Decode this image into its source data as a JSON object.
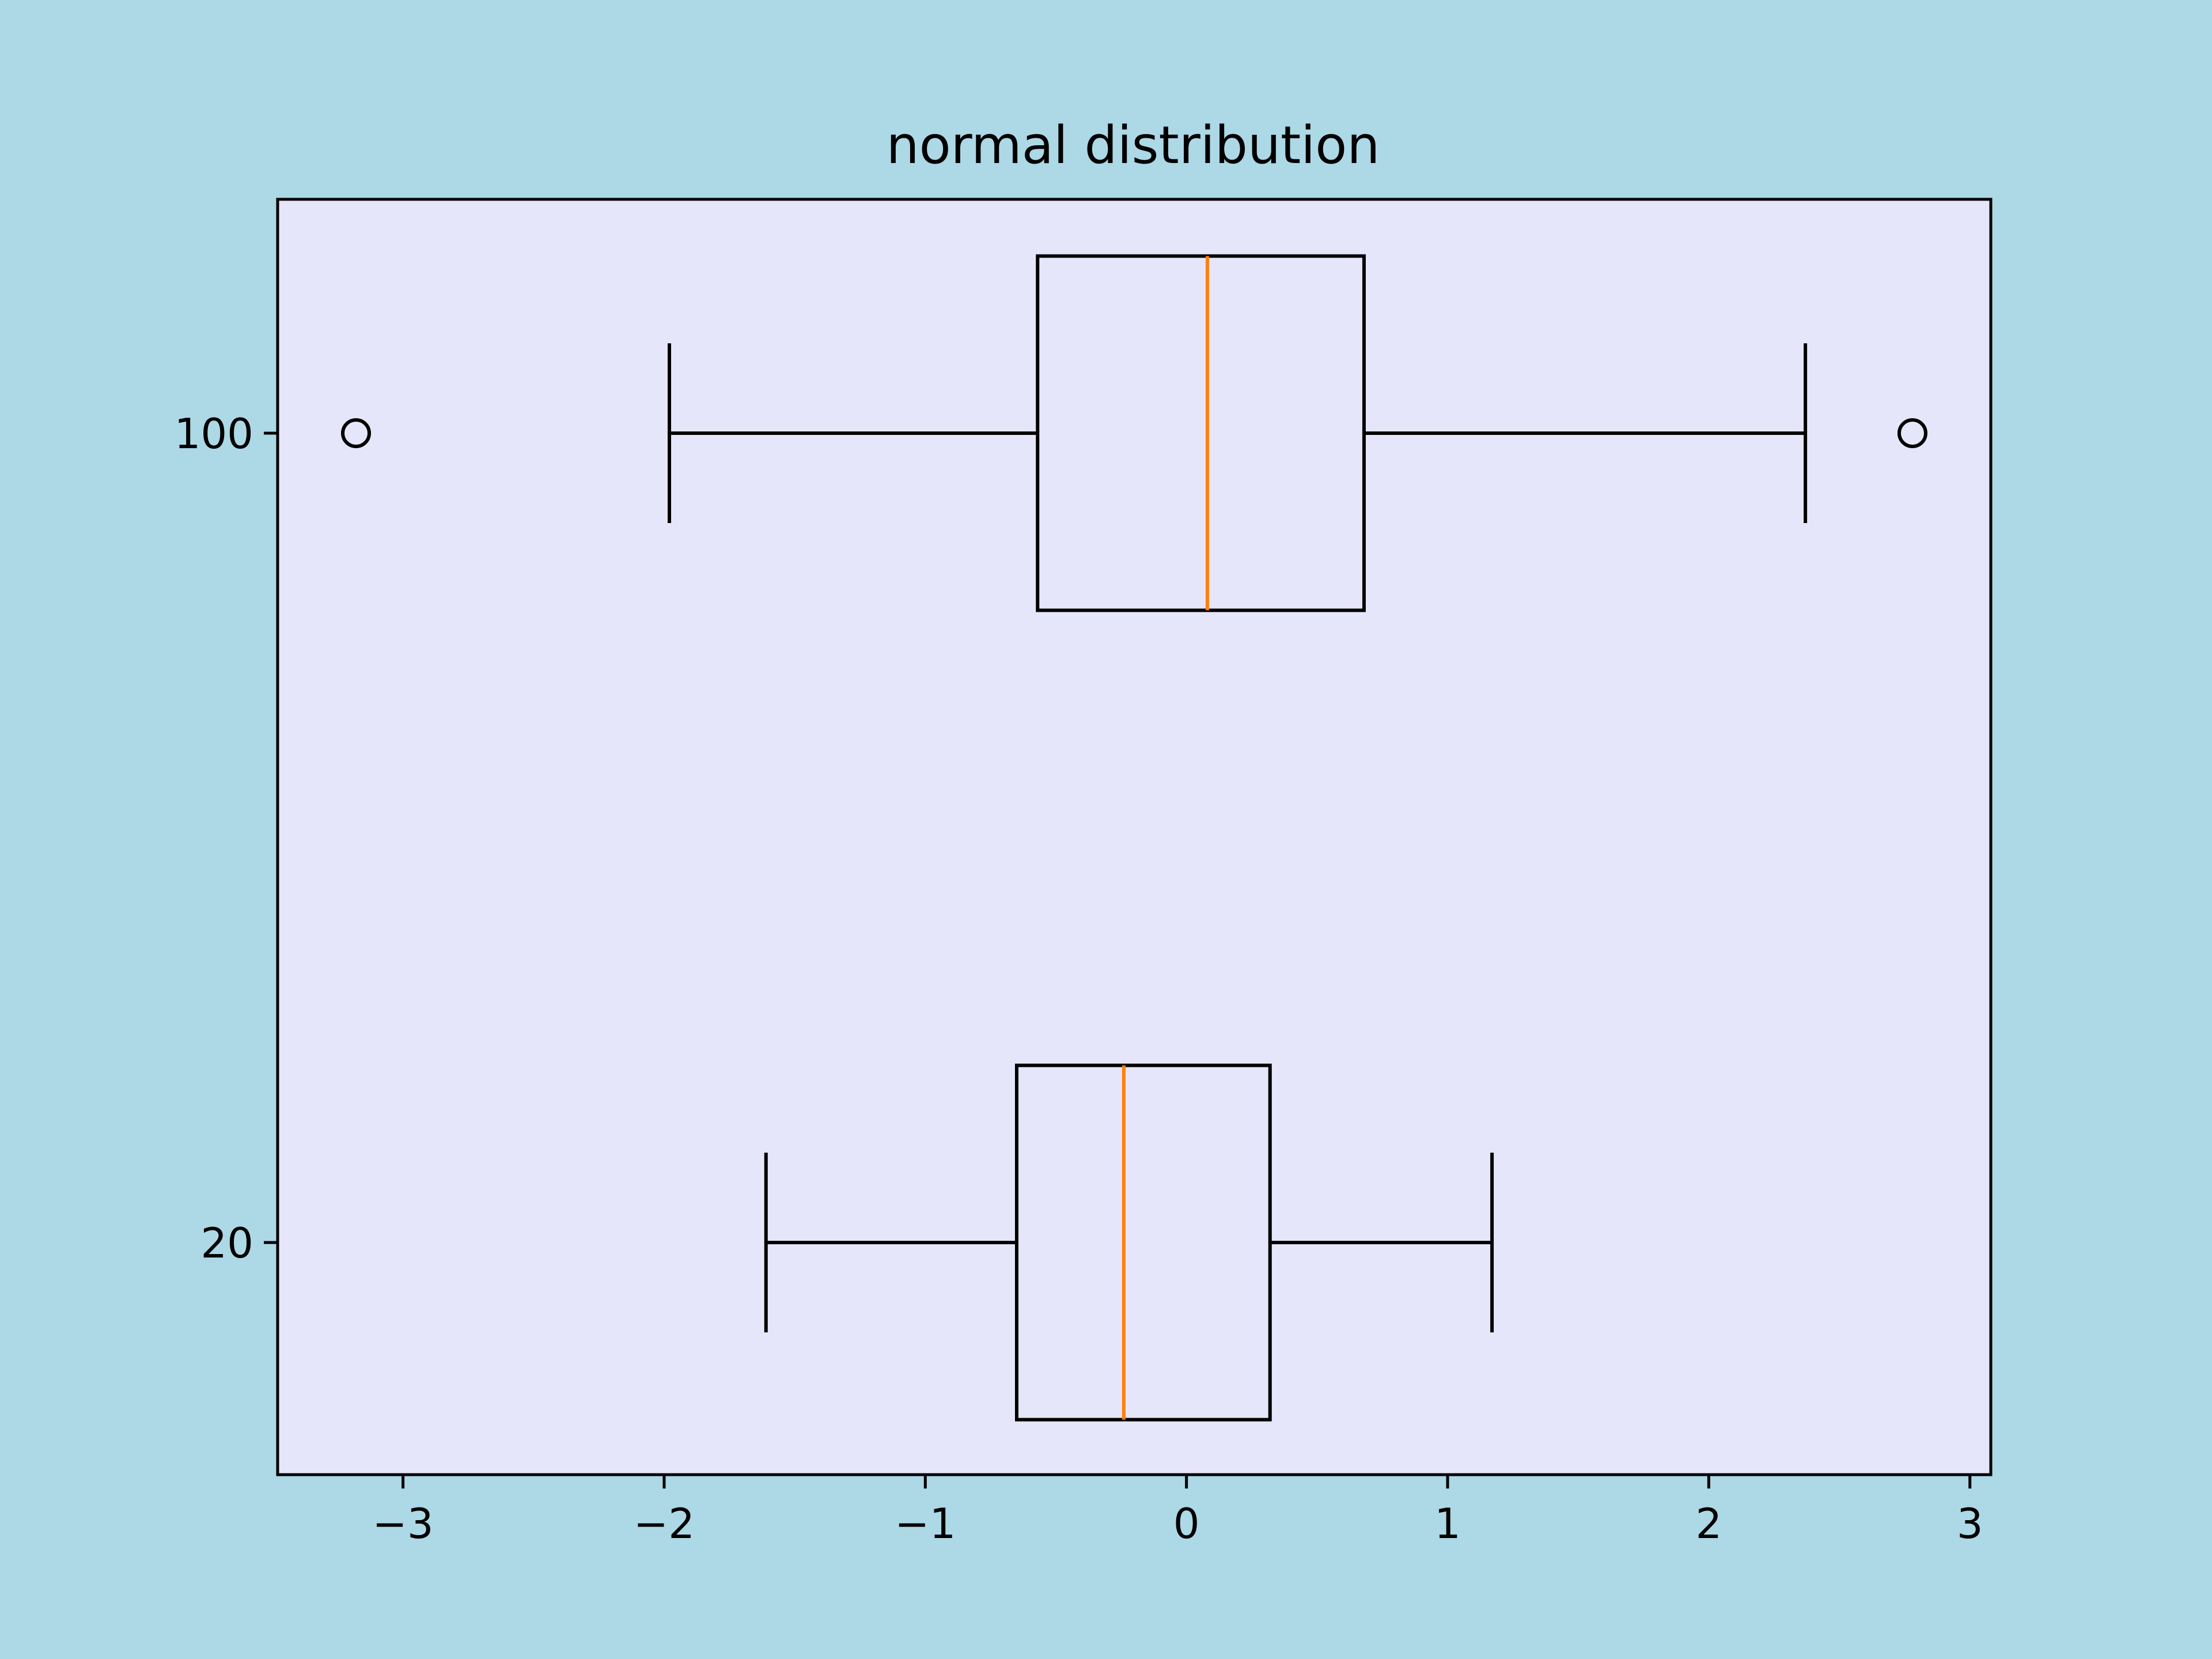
{
  "colors": {
    "figure_background": "#add8e6",
    "axes_background": "#e6e6fa",
    "box_edge": "#000000",
    "median": "#ff7f0e"
  },
  "chart_data": {
    "type": "boxplot",
    "orientation": "horizontal",
    "title": "normal distribution",
    "xlabel": "",
    "ylabel": "",
    "xlim": [
      -3.48,
      3.08
    ],
    "xticks": [
      -3,
      -2,
      -1,
      0,
      1,
      2,
      3
    ],
    "xtick_labels": [
      "−3",
      "−2",
      "−1",
      "0",
      "1",
      "2",
      "3"
    ],
    "categories": [
      "20",
      "100"
    ],
    "grid": false,
    "boxes": [
      {
        "label": "20",
        "whisker_low": -1.61,
        "q1": -0.65,
        "median": -0.24,
        "q3": 0.32,
        "whisker_high": 1.17,
        "outliers": []
      },
      {
        "label": "100",
        "whisker_low": -1.98,
        "q1": -0.57,
        "median": 0.08,
        "q3": 0.68,
        "whisker_high": 2.37,
        "outliers": [
          -3.18,
          2.78
        ]
      }
    ]
  }
}
